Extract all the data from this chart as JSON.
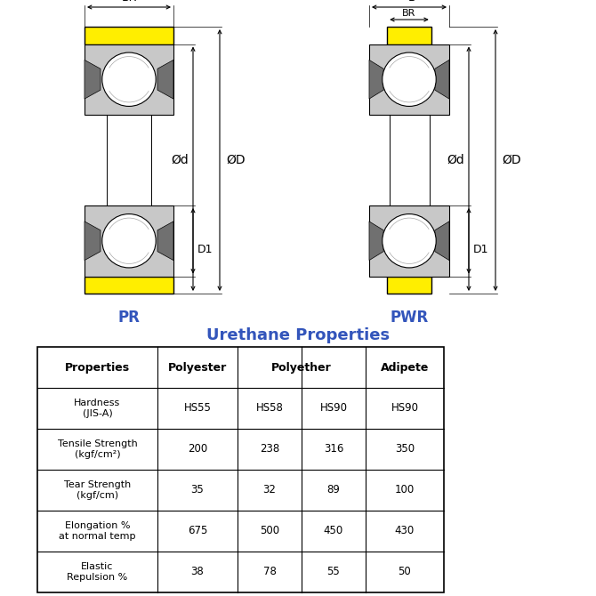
{
  "title": "Urethane Properties",
  "blue": "#3355BB",
  "yellow": "#FFEE00",
  "gray_light": "#C8C8C8",
  "gray_mid": "#A8A8A8",
  "gray_dark": "#707070",
  "white": "#FFFFFF",
  "black": "#000000",
  "bg": "#FFFFFF",
  "table_headers": [
    "Properties",
    "Polyester",
    "Polyether",
    "",
    "Adipete"
  ],
  "table_rows": [
    [
      "Hardness\n(JIS-A)",
      "HS55",
      "HS58",
      "HS90",
      "HS90"
    ],
    [
      "Tensile Strength\n(kgf/cm²)",
      "200",
      "238",
      "316",
      "350"
    ],
    [
      "Tear Strength\n(kgf/cm)",
      "35",
      "32",
      "89",
      "100"
    ],
    [
      "Elongation %\nat normal temp",
      "675",
      "500",
      "450",
      "430"
    ],
    [
      "Elastic\nRepulsion %",
      "38",
      "78",
      "55",
      "50"
    ]
  ]
}
